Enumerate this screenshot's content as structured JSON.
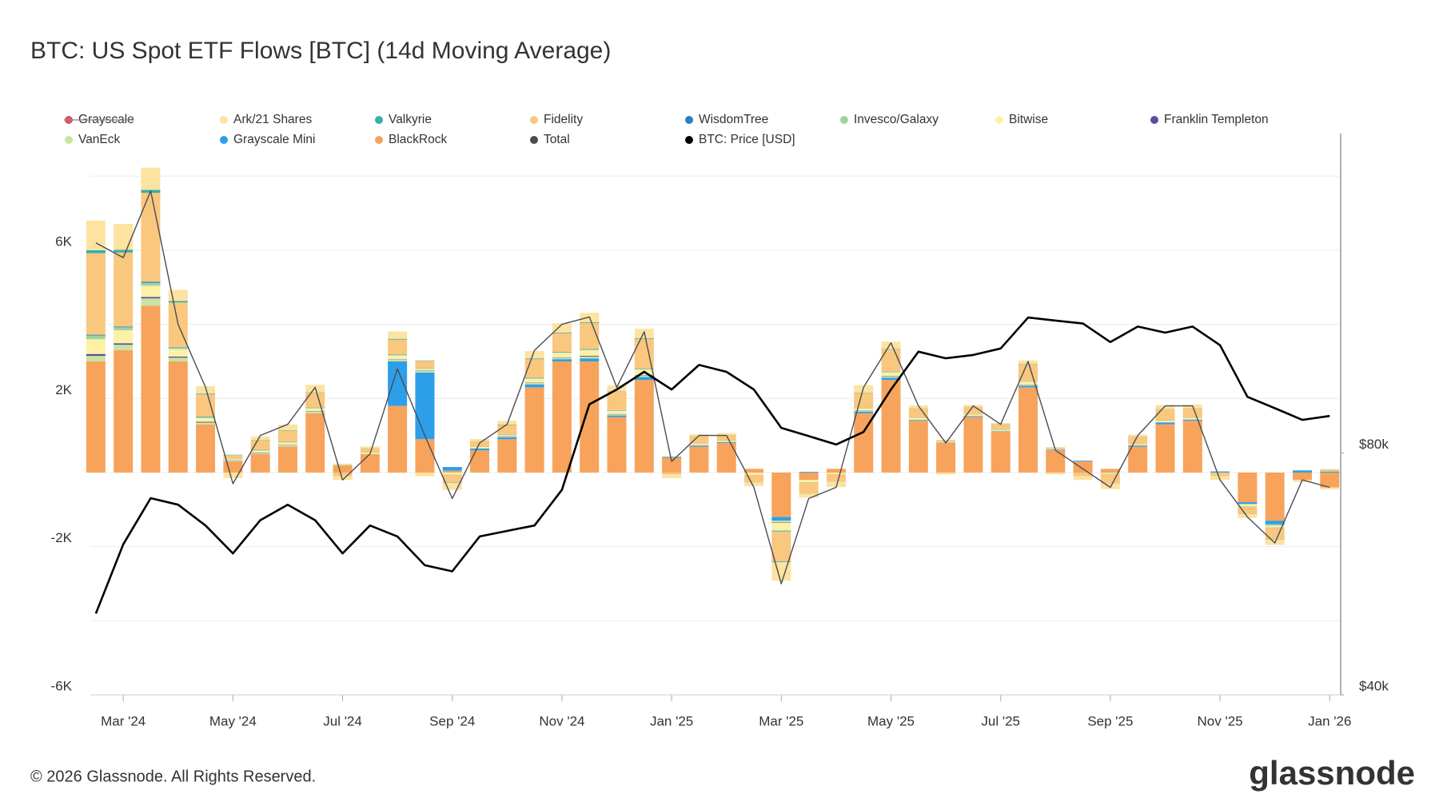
{
  "chart_data": {
    "type": "bar",
    "title": "BTC: US Spot ETF Flows [BTC] (14d Moving Average)",
    "x": [
      1.5,
      2,
      2.5,
      3,
      3.5,
      4,
      4.5,
      5,
      5.5,
      6,
      6.5,
      7,
      7.5,
      8,
      8.5,
      9,
      9.5,
      10,
      10.5,
      11,
      11.5,
      12,
      12.5,
      13,
      13.5,
      14,
      14.5,
      15,
      15.5,
      16,
      16.5,
      17,
      17.5,
      18,
      18.5,
      19,
      19.5,
      20,
      20.5,
      21,
      21.5,
      22,
      22.5,
      23,
      23.5,
      24
    ],
    "xlim": [
      1.4,
      24.2
    ],
    "xticks": [
      {
        "value": 2,
        "label": "Mar '24"
      },
      {
        "value": 4,
        "label": "May '24"
      },
      {
        "value": 6,
        "label": "Jul '24"
      },
      {
        "value": 8,
        "label": "Sep '24"
      },
      {
        "value": 10,
        "label": "Nov '24"
      },
      {
        "value": 12,
        "label": "Jan '25"
      },
      {
        "value": 14,
        "label": "Mar '25"
      },
      {
        "value": 16,
        "label": "May '25"
      },
      {
        "value": 18,
        "label": "Jul '25"
      },
      {
        "value": 20,
        "label": "Sep '25"
      },
      {
        "value": 22,
        "label": "Nov '25"
      },
      {
        "value": 24,
        "label": "Jan '26"
      }
    ],
    "ylim": [
      -6000,
      9150
    ],
    "yticks": [
      {
        "value": -6000,
        "label": "-6K"
      },
      {
        "value": -2000,
        "label": "-2K"
      },
      {
        "value": 2000,
        "label": "2K"
      },
      {
        "value": 6000,
        "label": "6K"
      }
    ],
    "minor_yticks": [
      -4000,
      0,
      4000,
      8000
    ],
    "y2lim": [
      40000,
      200000
    ],
    "y2_log": true,
    "y2ticks": [
      {
        "value": 40000,
        "label": "$40k"
      },
      {
        "value": 80000,
        "label": "$80k"
      }
    ],
    "grid": true,
    "series": [
      {
        "name": "Grayscale",
        "color": "#e05260",
        "mark": "bar",
        "hidden": true
      },
      {
        "name": "Ark/21 Shares",
        "color": "#fde3a0",
        "mark": "bar",
        "values": [
          800,
          700,
          600,
          300,
          200,
          -150,
          100,
          150,
          200,
          -100,
          50,
          200,
          -100,
          -200,
          50,
          100,
          200,
          250,
          250,
          150,
          250,
          -100,
          50,
          50,
          -100,
          -500,
          -100,
          -150,
          200,
          200,
          80,
          -50,
          50,
          30,
          100,
          -50,
          -100,
          -150,
          50,
          100,
          100,
          -100,
          -100,
          -150,
          -50,
          -50
        ]
      },
      {
        "name": "Valkyrie",
        "color": "#3aada8",
        "mark": "bar",
        "values": [
          80,
          70,
          80,
          40,
          20,
          10,
          10,
          10,
          10,
          5,
          5,
          20,
          10,
          -10,
          5,
          10,
          20,
          20,
          20,
          10,
          20,
          0,
          5,
          5,
          -5,
          -20,
          -5,
          -5,
          10,
          10,
          5,
          0,
          5,
          5,
          10,
          0,
          0,
          -5,
          5,
          5,
          5,
          0,
          -5,
          -10,
          0,
          0
        ]
      },
      {
        "name": "Fidelity",
        "color": "#f9c77e",
        "mark": "bar",
        "values": [
          2200,
          2000,
          2400,
          1200,
          600,
          100,
          250,
          300,
          400,
          -100,
          100,
          400,
          200,
          -200,
          150,
          250,
          500,
          500,
          700,
          500,
          800,
          -50,
          200,
          150,
          -200,
          -800,
          -300,
          -200,
          400,
          600,
          250,
          50,
          200,
          150,
          450,
          50,
          -100,
          -250,
          200,
          300,
          250,
          -100,
          -200,
          -300,
          0,
          50
        ]
      },
      {
        "name": "WisdomTree",
        "color": "#2a7fc0",
        "mark": "bar",
        "values": [
          20,
          20,
          30,
          10,
          10,
          0,
          5,
          5,
          5,
          0,
          0,
          10,
          5,
          0,
          0,
          5,
          10,
          10,
          10,
          5,
          10,
          0,
          0,
          0,
          0,
          -10,
          0,
          0,
          5,
          5,
          0,
          0,
          0,
          0,
          5,
          0,
          0,
          0,
          0,
          5,
          0,
          0,
          0,
          -5,
          0,
          0
        ]
      },
      {
        "name": "Invesco/Galaxy",
        "color": "#9fd39f",
        "mark": "bar",
        "values": [
          100,
          80,
          80,
          50,
          30,
          10,
          20,
          20,
          20,
          0,
          10,
          20,
          10,
          -10,
          10,
          10,
          20,
          20,
          30,
          20,
          20,
          0,
          10,
          10,
          0,
          -30,
          -10,
          0,
          10,
          20,
          10,
          0,
          10,
          10,
          10,
          0,
          0,
          -10,
          10,
          10,
          10,
          0,
          -10,
          -10,
          0,
          0
        ]
      },
      {
        "name": "Bitwise",
        "color": "#fdf1a6",
        "mark": "bar",
        "values": [
          400,
          350,
          300,
          200,
          100,
          30,
          50,
          60,
          80,
          20,
          30,
          100,
          50,
          -50,
          30,
          40,
          100,
          120,
          150,
          80,
          150,
          20,
          30,
          20,
          -50,
          -200,
          -50,
          -30,
          60,
          100,
          40,
          20,
          30,
          20,
          80,
          10,
          0,
          -20,
          20,
          40,
          30,
          0,
          -50,
          -50,
          10,
          10
        ]
      },
      {
        "name": "Franklin Templeton",
        "color": "#5b4ea1",
        "mark": "bar",
        "values": [
          50,
          40,
          40,
          30,
          20,
          10,
          10,
          10,
          10,
          0,
          0,
          10,
          10,
          0,
          0,
          10,
          10,
          10,
          20,
          10,
          10,
          0,
          0,
          0,
          0,
          -10,
          0,
          0,
          10,
          10,
          0,
          0,
          0,
          0,
          10,
          0,
          0,
          0,
          0,
          10,
          0,
          0,
          0,
          -10,
          0,
          0
        ]
      },
      {
        "name": "VanEck",
        "color": "#c9e3a0",
        "mark": "bar",
        "values": [
          150,
          150,
          200,
          100,
          50,
          20,
          30,
          40,
          40,
          10,
          10,
          50,
          40,
          0,
          10,
          20,
          40,
          40,
          50,
          30,
          40,
          10,
          10,
          10,
          -10,
          -50,
          -10,
          -10,
          20,
          30,
          10,
          0,
          10,
          10,
          20,
          0,
          0,
          -10,
          10,
          10,
          10,
          0,
          -10,
          -20,
          0,
          0
        ]
      },
      {
        "name": "Grayscale Mini",
        "color": "#2d9fe8",
        "mark": "bar",
        "values": [
          null,
          null,
          null,
          null,
          null,
          null,
          null,
          null,
          null,
          null,
          null,
          1200,
          1800,
          100,
          50,
          50,
          80,
          60,
          80,
          40,
          80,
          20,
          30,
          20,
          0,
          -100,
          20,
          0,
          40,
          60,
          20,
          10,
          20,
          10,
          40,
          20,
          20,
          0,
          30,
          40,
          30,
          30,
          -50,
          -100,
          60,
          30
        ]
      },
      {
        "name": "BlackRock",
        "color": "#f7a35c",
        "mark": "bar",
        "values": [
          3000,
          3300,
          4500,
          3000,
          1300,
          300,
          500,
          700,
          1600,
          200,
          500,
          1800,
          900,
          50,
          600,
          900,
          2300,
          3000,
          3000,
          1500,
          2500,
          400,
          700,
          800,
          100,
          -1200,
          -200,
          100,
          1600,
          2500,
          1400,
          800,
          1500,
          1100,
          2300,
          600,
          300,
          100,
          700,
          1300,
          1400,
          0,
          -800,
          -1300,
          -200,
          -400
        ]
      },
      {
        "name": "Total",
        "color": "#4a4c55",
        "mark": "line",
        "values": [
          6200,
          5800,
          7600,
          4000,
          2300,
          -300,
          1000,
          1300,
          2300,
          -200,
          500,
          2800,
          1000,
          -700,
          800,
          1300,
          3300,
          4000,
          4200,
          2300,
          3800,
          300,
          1000,
          1000,
          -400,
          -3000,
          -700,
          -400,
          2300,
          3500,
          1800,
          800,
          1800,
          1300,
          3000,
          600,
          100,
          -400,
          1000,
          1800,
          1800,
          -200,
          -1200,
          -1900,
          -200,
          -400
        ]
      },
      {
        "name": "BTC: Price [USD]",
        "color": "#000000",
        "mark": "line",
        "axis": "y2",
        "values": [
          50500,
          61600,
          70300,
          69000,
          65000,
          60000,
          66000,
          69000,
          66000,
          60000,
          65000,
          63000,
          58000,
          57000,
          63000,
          64000,
          65000,
          72000,
          92000,
          96000,
          101000,
          96000,
          103000,
          101000,
          96000,
          86000,
          84000,
          82000,
          85000,
          96000,
          107000,
          105000,
          106000,
          108000,
          118000,
          117000,
          116000,
          110000,
          115000,
          113000,
          115000,
          109000,
          94000,
          91000,
          88000,
          89000
        ]
      }
    ]
  },
  "footer": {
    "copyright": "© 2026 Glassnode. All Rights Reserved.",
    "brand": "glassnode"
  }
}
